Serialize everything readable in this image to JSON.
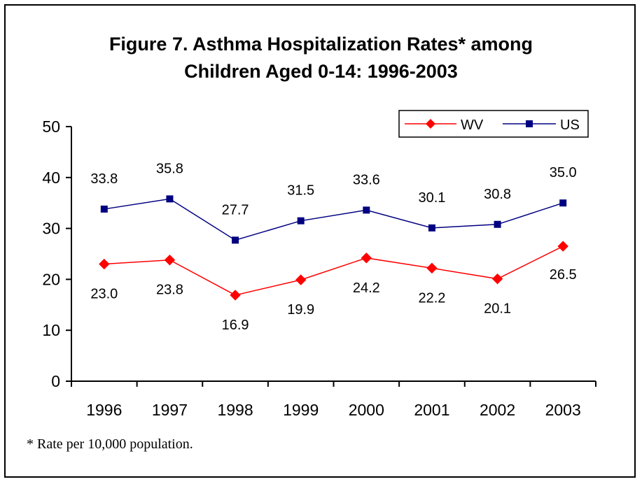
{
  "title_line1": "Figure 7.  Asthma Hospitalization Rates* among",
  "title_line2": "Children Aged 0-14: 1996-2003",
  "footnote": "* Rate per 10,000 population.",
  "colors": {
    "wv": "#ff0000",
    "us": "#000080"
  },
  "chart_data": {
    "type": "line",
    "title": "Figure 7.  Asthma Hospitalization Rates* among Children Aged 0-14: 1996-2003",
    "categories": [
      "1996",
      "1997",
      "1998",
      "1999",
      "2000",
      "2001",
      "2002",
      "2003"
    ],
    "series": [
      {
        "name": "WV",
        "values": [
          23.0,
          23.8,
          16.9,
          19.9,
          24.2,
          22.2,
          20.1,
          26.5
        ],
        "labels": [
          "23.0",
          "23.8",
          "16.9",
          "19.9",
          "24.2",
          "22.2",
          "20.1",
          "26.5"
        ]
      },
      {
        "name": "US",
        "values": [
          33.8,
          35.8,
          27.7,
          31.5,
          33.6,
          30.1,
          30.8,
          35.0
        ],
        "labels": [
          "33.8",
          "35.8",
          "27.7",
          "31.5",
          "33.6",
          "30.1",
          "30.8",
          "35.0"
        ]
      }
    ],
    "ylim": [
      0,
      50
    ],
    "yticks": [
      "0",
      "10",
      "20",
      "30",
      "40",
      "50"
    ],
    "grid": false,
    "legend": "top-right"
  }
}
